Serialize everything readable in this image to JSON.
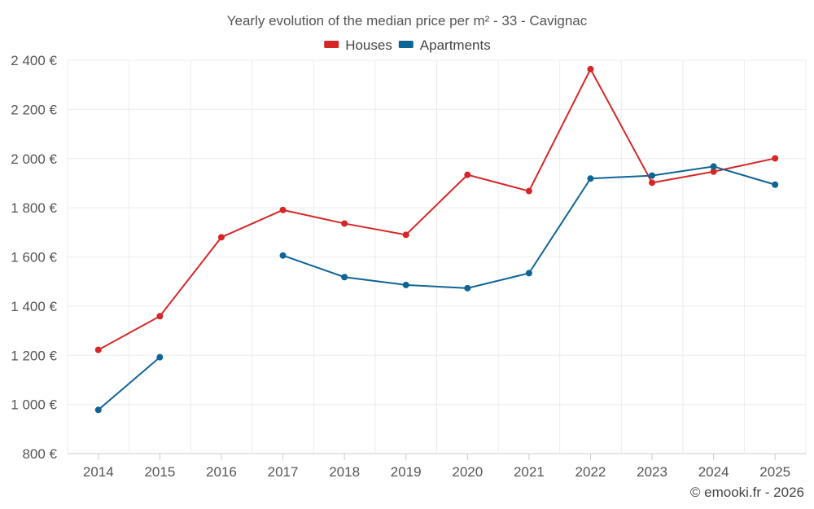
{
  "chart_data": {
    "type": "line",
    "title": "Yearly evolution of the median price per m² - 33 - Cavignac",
    "categories": [
      "2014",
      "2015",
      "2016",
      "2017",
      "2018",
      "2019",
      "2020",
      "2021",
      "2022",
      "2023",
      "2024",
      "2025"
    ],
    "series": [
      {
        "name": "Houses",
        "color": "#d62728",
        "values": [
          1222,
          1359,
          1680,
          1791,
          1736,
          1690,
          1934,
          1868,
          2364,
          1902,
          1947,
          2001
        ]
      },
      {
        "name": "Apartments",
        "color": "#0f6496",
        "values": [
          978,
          1192,
          null,
          1606,
          1518,
          1486,
          1473,
          1534,
          1919,
          1931,
          1968,
          1894
        ]
      }
    ],
    "ylim": [
      800,
      2400
    ],
    "y_ticks": [
      800,
      1000,
      1200,
      1400,
      1600,
      1800,
      2000,
      2200,
      2400
    ],
    "y_tick_labels": [
      "800 €",
      "1 000 €",
      "1 200 €",
      "1 400 €",
      "1 600 €",
      "1 800 €",
      "2 000 €",
      "2 200 €",
      "2 400 €"
    ],
    "grid": true,
    "legend_position": "top-center",
    "xlabel": "",
    "ylabel": ""
  },
  "credit": "© emooki.fr - 2026"
}
